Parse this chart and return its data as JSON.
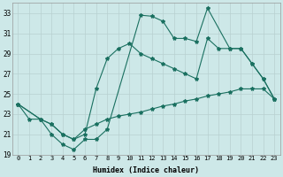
{
  "xlabel": "Humidex (Indice chaleur)",
  "bg_color": "#cde8e8",
  "grid_color": "#b8d0d0",
  "line_color": "#1a7060",
  "xlim": [
    -0.5,
    23.5
  ],
  "ylim": [
    19,
    34
  ],
  "xticks": [
    0,
    1,
    2,
    3,
    4,
    5,
    6,
    7,
    8,
    9,
    10,
    11,
    12,
    13,
    14,
    15,
    16,
    17,
    18,
    19,
    20,
    21,
    22,
    23
  ],
  "yticks": [
    19,
    21,
    23,
    25,
    27,
    29,
    31,
    33
  ],
  "line1_x": [
    0,
    1,
    2,
    3,
    4,
    5,
    6,
    7,
    8,
    11,
    12,
    13,
    14,
    15,
    16,
    17,
    19,
    20,
    21,
    22,
    23
  ],
  "line1_y": [
    24.0,
    22.5,
    22.5,
    21.0,
    20.0,
    19.5,
    20.5,
    20.5,
    21.5,
    32.8,
    32.7,
    32.2,
    30.5,
    30.5,
    30.2,
    33.5,
    29.5,
    29.5,
    28.0,
    26.5,
    24.5
  ],
  "line2_x": [
    0,
    2,
    3,
    4,
    5,
    6,
    7,
    8,
    9,
    10,
    11,
    12,
    13,
    14,
    15,
    16,
    17,
    18,
    19,
    20,
    21,
    22,
    23
  ],
  "line2_y": [
    24.0,
    22.5,
    22.0,
    21.0,
    20.5,
    21.0,
    25.5,
    28.5,
    29.5,
    30.0,
    29.0,
    28.5,
    28.0,
    27.5,
    27.0,
    26.5,
    30.5,
    29.5,
    29.5,
    29.5,
    28.0,
    26.5,
    24.5
  ],
  "line3_x": [
    0,
    2,
    3,
    4,
    5,
    6,
    7,
    8,
    9,
    10,
    11,
    12,
    13,
    14,
    15,
    16,
    17,
    18,
    19,
    20,
    21,
    22,
    23
  ],
  "line3_y": [
    24.0,
    22.5,
    22.0,
    21.0,
    20.5,
    21.5,
    22.0,
    22.5,
    22.8,
    23.0,
    23.2,
    23.5,
    23.8,
    24.0,
    24.3,
    24.5,
    24.8,
    25.0,
    25.2,
    25.5,
    25.5,
    25.5,
    24.5
  ],
  "font_family": "monospace"
}
